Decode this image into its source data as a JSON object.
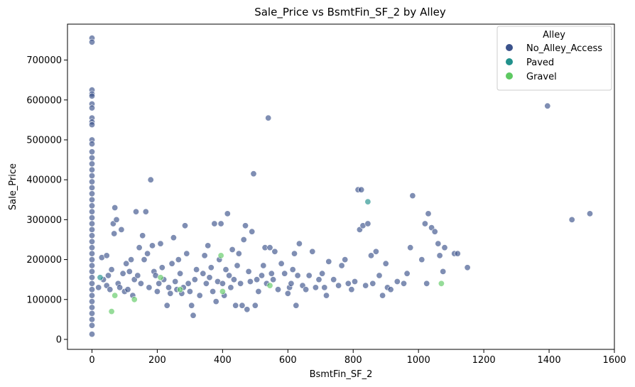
{
  "chart_data": {
    "type": "scatter",
    "title": "Sale_Price vs BsmtFin_SF_2 by Alley",
    "xlabel": "BsmtFin_SF_2",
    "ylabel": "Sale_Price",
    "xlim": [
      -75,
      1600
    ],
    "ylim": [
      -25000,
      790000
    ],
    "x_ticks": [
      0,
      200,
      400,
      600,
      800,
      1000,
      1200,
      1400,
      1600
    ],
    "y_ticks": [
      0,
      100000,
      200000,
      300000,
      400000,
      500000,
      600000,
      700000
    ],
    "grid": false,
    "legend": {
      "title": "Alley",
      "placement": "top-right"
    },
    "series": [
      {
        "name": "No_Alley_Access",
        "color": "#3b528b",
        "points": [
          [
            0,
            755000
          ],
          [
            0,
            745000
          ],
          [
            0,
            625000
          ],
          [
            0,
            615000
          ],
          [
            0,
            610000
          ],
          [
            0,
            590000
          ],
          [
            0,
            580000
          ],
          [
            0,
            555000
          ],
          [
            0,
            545000
          ],
          [
            0,
            538000
          ],
          [
            0,
            500000
          ],
          [
            0,
            490000
          ],
          [
            0,
            470000
          ],
          [
            0,
            455000
          ],
          [
            0,
            440000
          ],
          [
            0,
            425000
          ],
          [
            0,
            410000
          ],
          [
            0,
            395000
          ],
          [
            0,
            380000
          ],
          [
            0,
            365000
          ],
          [
            0,
            350000
          ],
          [
            0,
            335000
          ],
          [
            0,
            320000
          ],
          [
            0,
            305000
          ],
          [
            0,
            290000
          ],
          [
            0,
            275000
          ],
          [
            0,
            260000
          ],
          [
            0,
            245000
          ],
          [
            0,
            230000
          ],
          [
            0,
            215000
          ],
          [
            0,
            200000
          ],
          [
            0,
            185000
          ],
          [
            0,
            170000
          ],
          [
            0,
            155000
          ],
          [
            0,
            140000
          ],
          [
            0,
            125000
          ],
          [
            0,
            110000
          ],
          [
            0,
            95000
          ],
          [
            0,
            80000
          ],
          [
            0,
            65000
          ],
          [
            0,
            50000
          ],
          [
            0,
            35000
          ],
          [
            0,
            13000
          ],
          [
            20,
            130000
          ],
          [
            30,
            205000
          ],
          [
            35,
            150000
          ],
          [
            45,
            210000
          ],
          [
            45,
            135000
          ],
          [
            50,
            160000
          ],
          [
            55,
            125000
          ],
          [
            60,
            175000
          ],
          [
            65,
            290000
          ],
          [
            70,
            330000
          ],
          [
            68,
            265000
          ],
          [
            75,
            300000
          ],
          [
            80,
            140000
          ],
          [
            85,
            130000
          ],
          [
            90,
            275000
          ],
          [
            95,
            165000
          ],
          [
            100,
            120000
          ],
          [
            105,
            190000
          ],
          [
            110,
            125000
          ],
          [
            115,
            170000
          ],
          [
            120,
            200000
          ],
          [
            125,
            110000
          ],
          [
            130,
            150000
          ],
          [
            135,
            320000
          ],
          [
            140,
            160000
          ],
          [
            145,
            230000
          ],
          [
            150,
            140000
          ],
          [
            155,
            260000
          ],
          [
            160,
            200000
          ],
          [
            165,
            320000
          ],
          [
            170,
            215000
          ],
          [
            175,
            130000
          ],
          [
            180,
            400000
          ],
          [
            185,
            235000
          ],
          [
            190,
            170000
          ],
          [
            195,
            160000
          ],
          [
            200,
            120000
          ],
          [
            205,
            140000
          ],
          [
            210,
            240000
          ],
          [
            215,
            180000
          ],
          [
            220,
            150000
          ],
          [
            230,
            85000
          ],
          [
            235,
            130000
          ],
          [
            240,
            115000
          ],
          [
            245,
            190000
          ],
          [
            250,
            255000
          ],
          [
            255,
            145000
          ],
          [
            260,
            125000
          ],
          [
            265,
            200000
          ],
          [
            270,
            165000
          ],
          [
            275,
            115000
          ],
          [
            280,
            130000
          ],
          [
            285,
            285000
          ],
          [
            290,
            215000
          ],
          [
            295,
            140000
          ],
          [
            300,
            120000
          ],
          [
            305,
            85000
          ],
          [
            310,
            60000
          ],
          [
            315,
            150000
          ],
          [
            320,
            175000
          ],
          [
            330,
            110000
          ],
          [
            340,
            165000
          ],
          [
            345,
            210000
          ],
          [
            350,
            140000
          ],
          [
            355,
            235000
          ],
          [
            360,
            155000
          ],
          [
            365,
            180000
          ],
          [
            370,
            120000
          ],
          [
            375,
            290000
          ],
          [
            380,
            95000
          ],
          [
            385,
            145000
          ],
          [
            390,
            200000
          ],
          [
            395,
            290000
          ],
          [
            400,
            140000
          ],
          [
            405,
            110000
          ],
          [
            410,
            175000
          ],
          [
            415,
            315000
          ],
          [
            420,
            160000
          ],
          [
            425,
            130000
          ],
          [
            430,
            225000
          ],
          [
            435,
            150000
          ],
          [
            440,
            85000
          ],
          [
            445,
            185000
          ],
          [
            450,
            215000
          ],
          [
            455,
            140000
          ],
          [
            460,
            85000
          ],
          [
            465,
            250000
          ],
          [
            470,
            285000
          ],
          [
            475,
            75000
          ],
          [
            480,
            170000
          ],
          [
            485,
            145000
          ],
          [
            490,
            270000
          ],
          [
            495,
            415000
          ],
          [
            500,
            85000
          ],
          [
            505,
            150000
          ],
          [
            510,
            120000
          ],
          [
            520,
            160000
          ],
          [
            525,
            185000
          ],
          [
            530,
            230000
          ],
          [
            535,
            140000
          ],
          [
            540,
            555000
          ],
          [
            545,
            230000
          ],
          [
            550,
            165000
          ],
          [
            555,
            150000
          ],
          [
            560,
            220000
          ],
          [
            570,
            125000
          ],
          [
            580,
            190000
          ],
          [
            590,
            165000
          ],
          [
            600,
            115000
          ],
          [
            605,
            130000
          ],
          [
            610,
            140000
          ],
          [
            615,
            175000
          ],
          [
            620,
            215000
          ],
          [
            625,
            85000
          ],
          [
            630,
            160000
          ],
          [
            635,
            240000
          ],
          [
            645,
            135000
          ],
          [
            655,
            125000
          ],
          [
            665,
            160000
          ],
          [
            675,
            220000
          ],
          [
            685,
            130000
          ],
          [
            695,
            150000
          ],
          [
            705,
            165000
          ],
          [
            712,
            130000
          ],
          [
            718,
            110000
          ],
          [
            725,
            195000
          ],
          [
            740,
            150000
          ],
          [
            755,
            135000
          ],
          [
            765,
            185000
          ],
          [
            775,
            200000
          ],
          [
            785,
            140000
          ],
          [
            795,
            125000
          ],
          [
            805,
            145000
          ],
          [
            815,
            375000
          ],
          [
            820,
            275000
          ],
          [
            825,
            375000
          ],
          [
            830,
            285000
          ],
          [
            838,
            135000
          ],
          [
            845,
            290000
          ],
          [
            855,
            210000
          ],
          [
            860,
            140000
          ],
          [
            870,
            220000
          ],
          [
            880,
            160000
          ],
          [
            890,
            110000
          ],
          [
            900,
            190000
          ],
          [
            905,
            130000
          ],
          [
            915,
            125000
          ],
          [
            935,
            145000
          ],
          [
            955,
            140000
          ],
          [
            965,
            165000
          ],
          [
            975,
            230000
          ],
          [
            982,
            360000
          ],
          [
            1010,
            200000
          ],
          [
            1020,
            290000
          ],
          [
            1025,
            140000
          ],
          [
            1030,
            315000
          ],
          [
            1040,
            280000
          ],
          [
            1050,
            270000
          ],
          [
            1060,
            240000
          ],
          [
            1065,
            210000
          ],
          [
            1075,
            170000
          ],
          [
            1080,
            230000
          ],
          [
            1110,
            215000
          ],
          [
            1120,
            215000
          ],
          [
            1150,
            180000
          ],
          [
            1395,
            585000
          ],
          [
            1470,
            300000
          ],
          [
            1525,
            315000
          ]
        ]
      },
      {
        "name": "Paved",
        "color": "#21918c",
        "points": [
          [
            25,
            155000
          ],
          [
            845,
            345000
          ]
        ]
      },
      {
        "name": "Gravel",
        "color": "#5ec962",
        "points": [
          [
            60,
            70000
          ],
          [
            70,
            110000
          ],
          [
            130,
            100000
          ],
          [
            210,
            155000
          ],
          [
            270,
            125000
          ],
          [
            395,
            210000
          ],
          [
            400,
            120000
          ],
          [
            545,
            135000
          ],
          [
            1070,
            140000
          ]
        ]
      }
    ]
  }
}
